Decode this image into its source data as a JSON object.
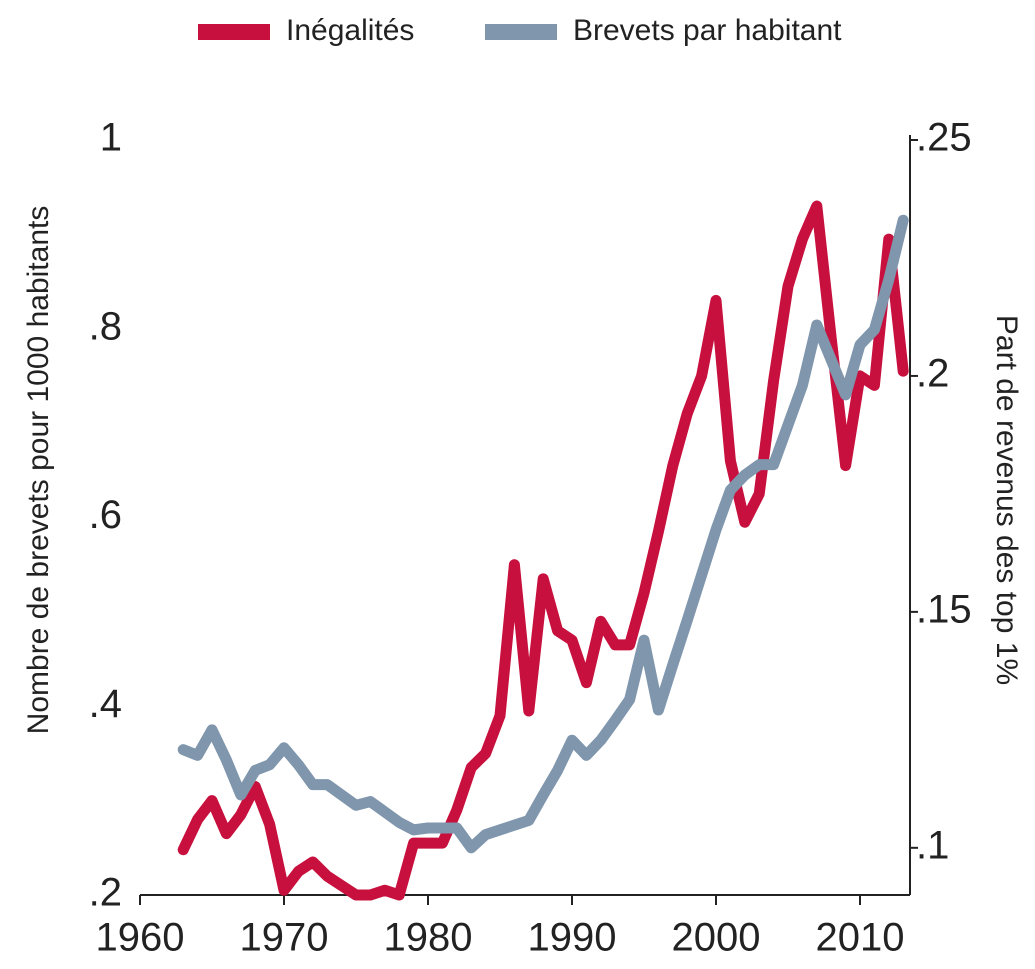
{
  "chart_data": {
    "type": "line",
    "y_label": "Nombre de brevets pour 1000 habitants",
    "y2_label": "Part de revenus des top 1%",
    "x": [
      1963,
      1964,
      1965,
      1966,
      1967,
      1968,
      1969,
      1970,
      1971,
      1972,
      1973,
      1974,
      1975,
      1976,
      1977,
      1978,
      1979,
      1980,
      1981,
      1982,
      1983,
      1984,
      1985,
      1986,
      1987,
      1988,
      1989,
      1990,
      1991,
      1992,
      1993,
      1994,
      1995,
      1996,
      1997,
      1998,
      1999,
      2000,
      2001,
      2002,
      2003,
      2004,
      2005,
      2006,
      2007,
      2008,
      2009,
      2010,
      2011,
      2012,
      2013
    ],
    "series": [
      {
        "name": "Inégalités",
        "color": "#c8103e",
        "axis": "y2",
        "values": [
          0.0996,
          0.106,
          0.11,
          0.103,
          0.107,
          0.113,
          0.105,
          0.091,
          0.095,
          0.097,
          0.094,
          0.092,
          0.09,
          0.09,
          0.091,
          0.09,
          0.101,
          0.101,
          0.101,
          0.108,
          0.117,
          0.12,
          0.128,
          0.16,
          0.129,
          0.157,
          0.146,
          0.144,
          0.135,
          0.148,
          0.143,
          0.143,
          0.154,
          0.167,
          0.181,
          0.192,
          0.2,
          0.216,
          0.182,
          0.169,
          0.175,
          0.199,
          0.219,
          0.229,
          0.236,
          0.208,
          0.181,
          0.2,
          0.198,
          0.229,
          0.201
        ]
      },
      {
        "name": "Brevets par habitant",
        "color": "#7f96ad",
        "values": [
          0.354,
          0.348,
          0.375,
          0.343,
          0.306,
          0.332,
          0.338,
          0.356,
          0.338,
          0.317,
          0.317,
          0.306,
          0.295,
          0.299,
          0.288,
          0.277,
          0.269,
          0.271,
          0.271,
          0.271,
          0.25,
          0.264,
          0.269,
          0.274,
          0.279,
          0.306,
          0.332,
          0.364,
          0.348,
          0.364,
          0.385,
          0.407,
          0.47,
          0.396,
          0.444,
          0.491,
          0.539,
          0.587,
          0.629,
          0.645,
          0.656,
          0.656,
          0.698,
          0.74,
          0.804,
          0.767,
          0.73,
          0.783,
          0.799,
          0.852,
          0.915
        ]
      }
    ],
    "xlim": [
      1960,
      2014
    ],
    "xticks": [
      1960,
      1970,
      1980,
      1990,
      2000,
      2010
    ],
    "ylim": [
      0.2,
      1.0
    ],
    "yticks": [
      {
        "value": 0.2,
        "label": ".2"
      },
      {
        "value": 0.4,
        "label": ".4"
      },
      {
        "value": 0.6,
        "label": ".6"
      },
      {
        "value": 0.8,
        "label": ".8"
      },
      1
    ],
    "y2lim": [
      0.09,
      0.25
    ],
    "y2ticks": [
      {
        "value": 0.1,
        "label": ".1"
      },
      {
        "value": 0.15,
        "label": ".15"
      },
      {
        "value": 0.2,
        "label": ".2"
      },
      {
        "value": 0.25,
        "label": ".25"
      }
    ],
    "legend": "top",
    "grid": false
  }
}
